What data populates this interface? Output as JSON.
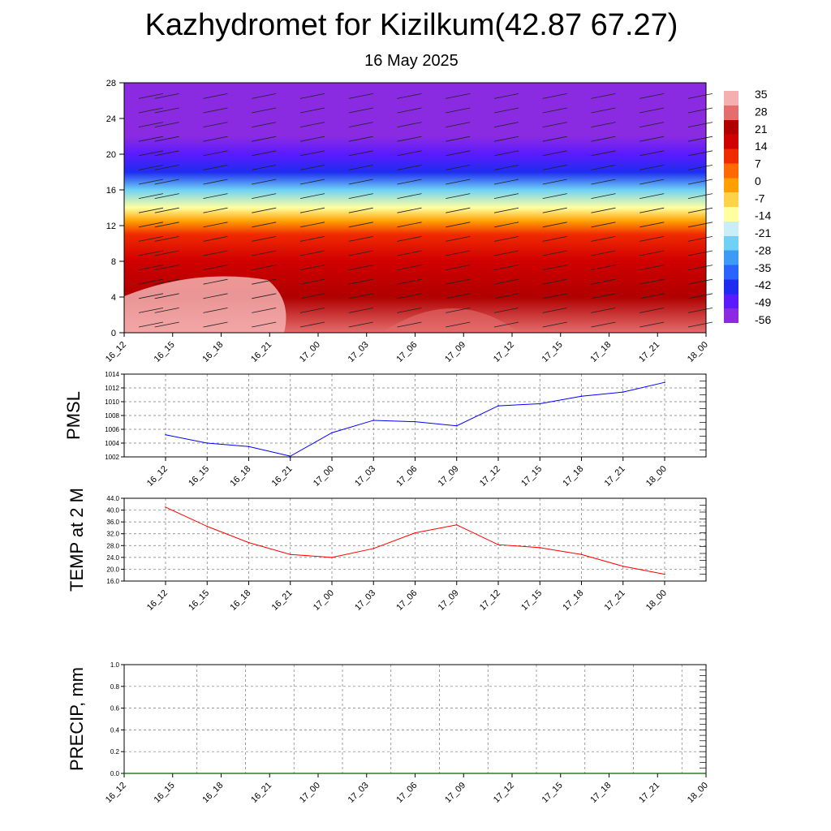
{
  "title": "Kazhydromet for Kizilkum(42.87 67.27)",
  "subtitle": "16 May 2025",
  "chart_data": [
    {
      "type": "heatmap",
      "name": "vertical-cross-section",
      "xlabel": "",
      "ylabel": "",
      "time_labels": [
        "16_12",
        "16_15",
        "16_18",
        "16_21",
        "17_00",
        "17_03",
        "17_06",
        "17_09",
        "17_12",
        "17_15",
        "17_18",
        "17_21",
        "18_00"
      ],
      "y_ticks": [
        0,
        4,
        8,
        12,
        16,
        20,
        24,
        28
      ],
      "ylim": [
        0,
        28
      ],
      "colorbar_labels": [
        "35",
        "28",
        "21",
        "14",
        "7",
        "0",
        "-7",
        "-14",
        "-21",
        "-28",
        "-35",
        "-42",
        "-49",
        "-56"
      ],
      "colorbar_range": [
        -60,
        38
      ],
      "colorbar_colors": [
        "#8a2be2",
        "#5a1bff",
        "#1f2cf0",
        "#2a63ff",
        "#3b9bf5",
        "#6fd2f5",
        "#c9eef5",
        "#ffffa0",
        "#ffd24a",
        "#ffa000",
        "#ff6a00",
        "#f02a00",
        "#d00000",
        "#b00000",
        "#e46d6d",
        "#f4b0b0"
      ],
      "temperature_profile": [
        {
          "height": 0,
          "value": 30
        },
        {
          "height": 4,
          "value": 24
        },
        {
          "height": 8,
          "value": 19
        },
        {
          "height": 11,
          "value": 10
        },
        {
          "height": 12.5,
          "value": -2
        },
        {
          "height": 14,
          "value": -14
        },
        {
          "height": 16,
          "value": -28
        },
        {
          "height": 18,
          "value": -42
        },
        {
          "height": 20,
          "value": -52
        },
        {
          "height": 22,
          "value": -56
        },
        {
          "height": 25,
          "value": -60
        },
        {
          "height": 28,
          "value": -60
        }
      ]
    },
    {
      "type": "line",
      "ylabel": "PMSL",
      "categories": [
        "16_12",
        "16_15",
        "16_18",
        "16_21",
        "17_00",
        "17_03",
        "17_06",
        "17_09",
        "17_12",
        "17_15",
        "17_18",
        "17_21",
        "18_00"
      ],
      "values": [
        1005.2,
        1004.0,
        1003.5,
        1002.1,
        1005.5,
        1007.3,
        1007.1,
        1006.5,
        1009.4,
        1009.7,
        1010.8,
        1011.4,
        1012.8
      ],
      "ylim": [
        1002,
        1014
      ],
      "y_ticks": [
        1002,
        1004,
        1006,
        1008,
        1010,
        1012,
        1014
      ],
      "color": "#0000ff"
    },
    {
      "type": "line",
      "ylabel": "TEMP at 2 M",
      "categories": [
        "16_12",
        "16_15",
        "16_18",
        "16_21",
        "17_00",
        "17_03",
        "17_06",
        "17_09",
        "17_12",
        "17_15",
        "17_18",
        "17_21",
        "18_00"
      ],
      "values": [
        41.0,
        34.5,
        29.0,
        25.0,
        24.0,
        27.0,
        32.3,
        35.0,
        28.3,
        27.3,
        25.0,
        21.0,
        18.3
      ],
      "ylim": [
        16,
        44
      ],
      "y_ticks": [
        "16.0",
        "20.0",
        "24.0",
        "28.0",
        "32.0",
        "36.0",
        "40.0",
        "44.0"
      ],
      "color": "#ff0000"
    },
    {
      "type": "line",
      "ylabel": "PRECIP, mm",
      "categories": [
        "16_12",
        "16_15",
        "16_18",
        "16_21",
        "17_00",
        "17_03",
        "17_06",
        "17_09",
        "17_12",
        "17_15",
        "17_18",
        "17_21",
        "18_00"
      ],
      "values": [
        0,
        0,
        0,
        0,
        0,
        0,
        0,
        0,
        0,
        0,
        0,
        0,
        0
      ],
      "ylim": [
        0,
        1
      ],
      "y_ticks": [
        "0.0",
        "0.2",
        "0.4",
        "0.6",
        "0.8",
        "1.0"
      ],
      "color": "#006400"
    }
  ]
}
